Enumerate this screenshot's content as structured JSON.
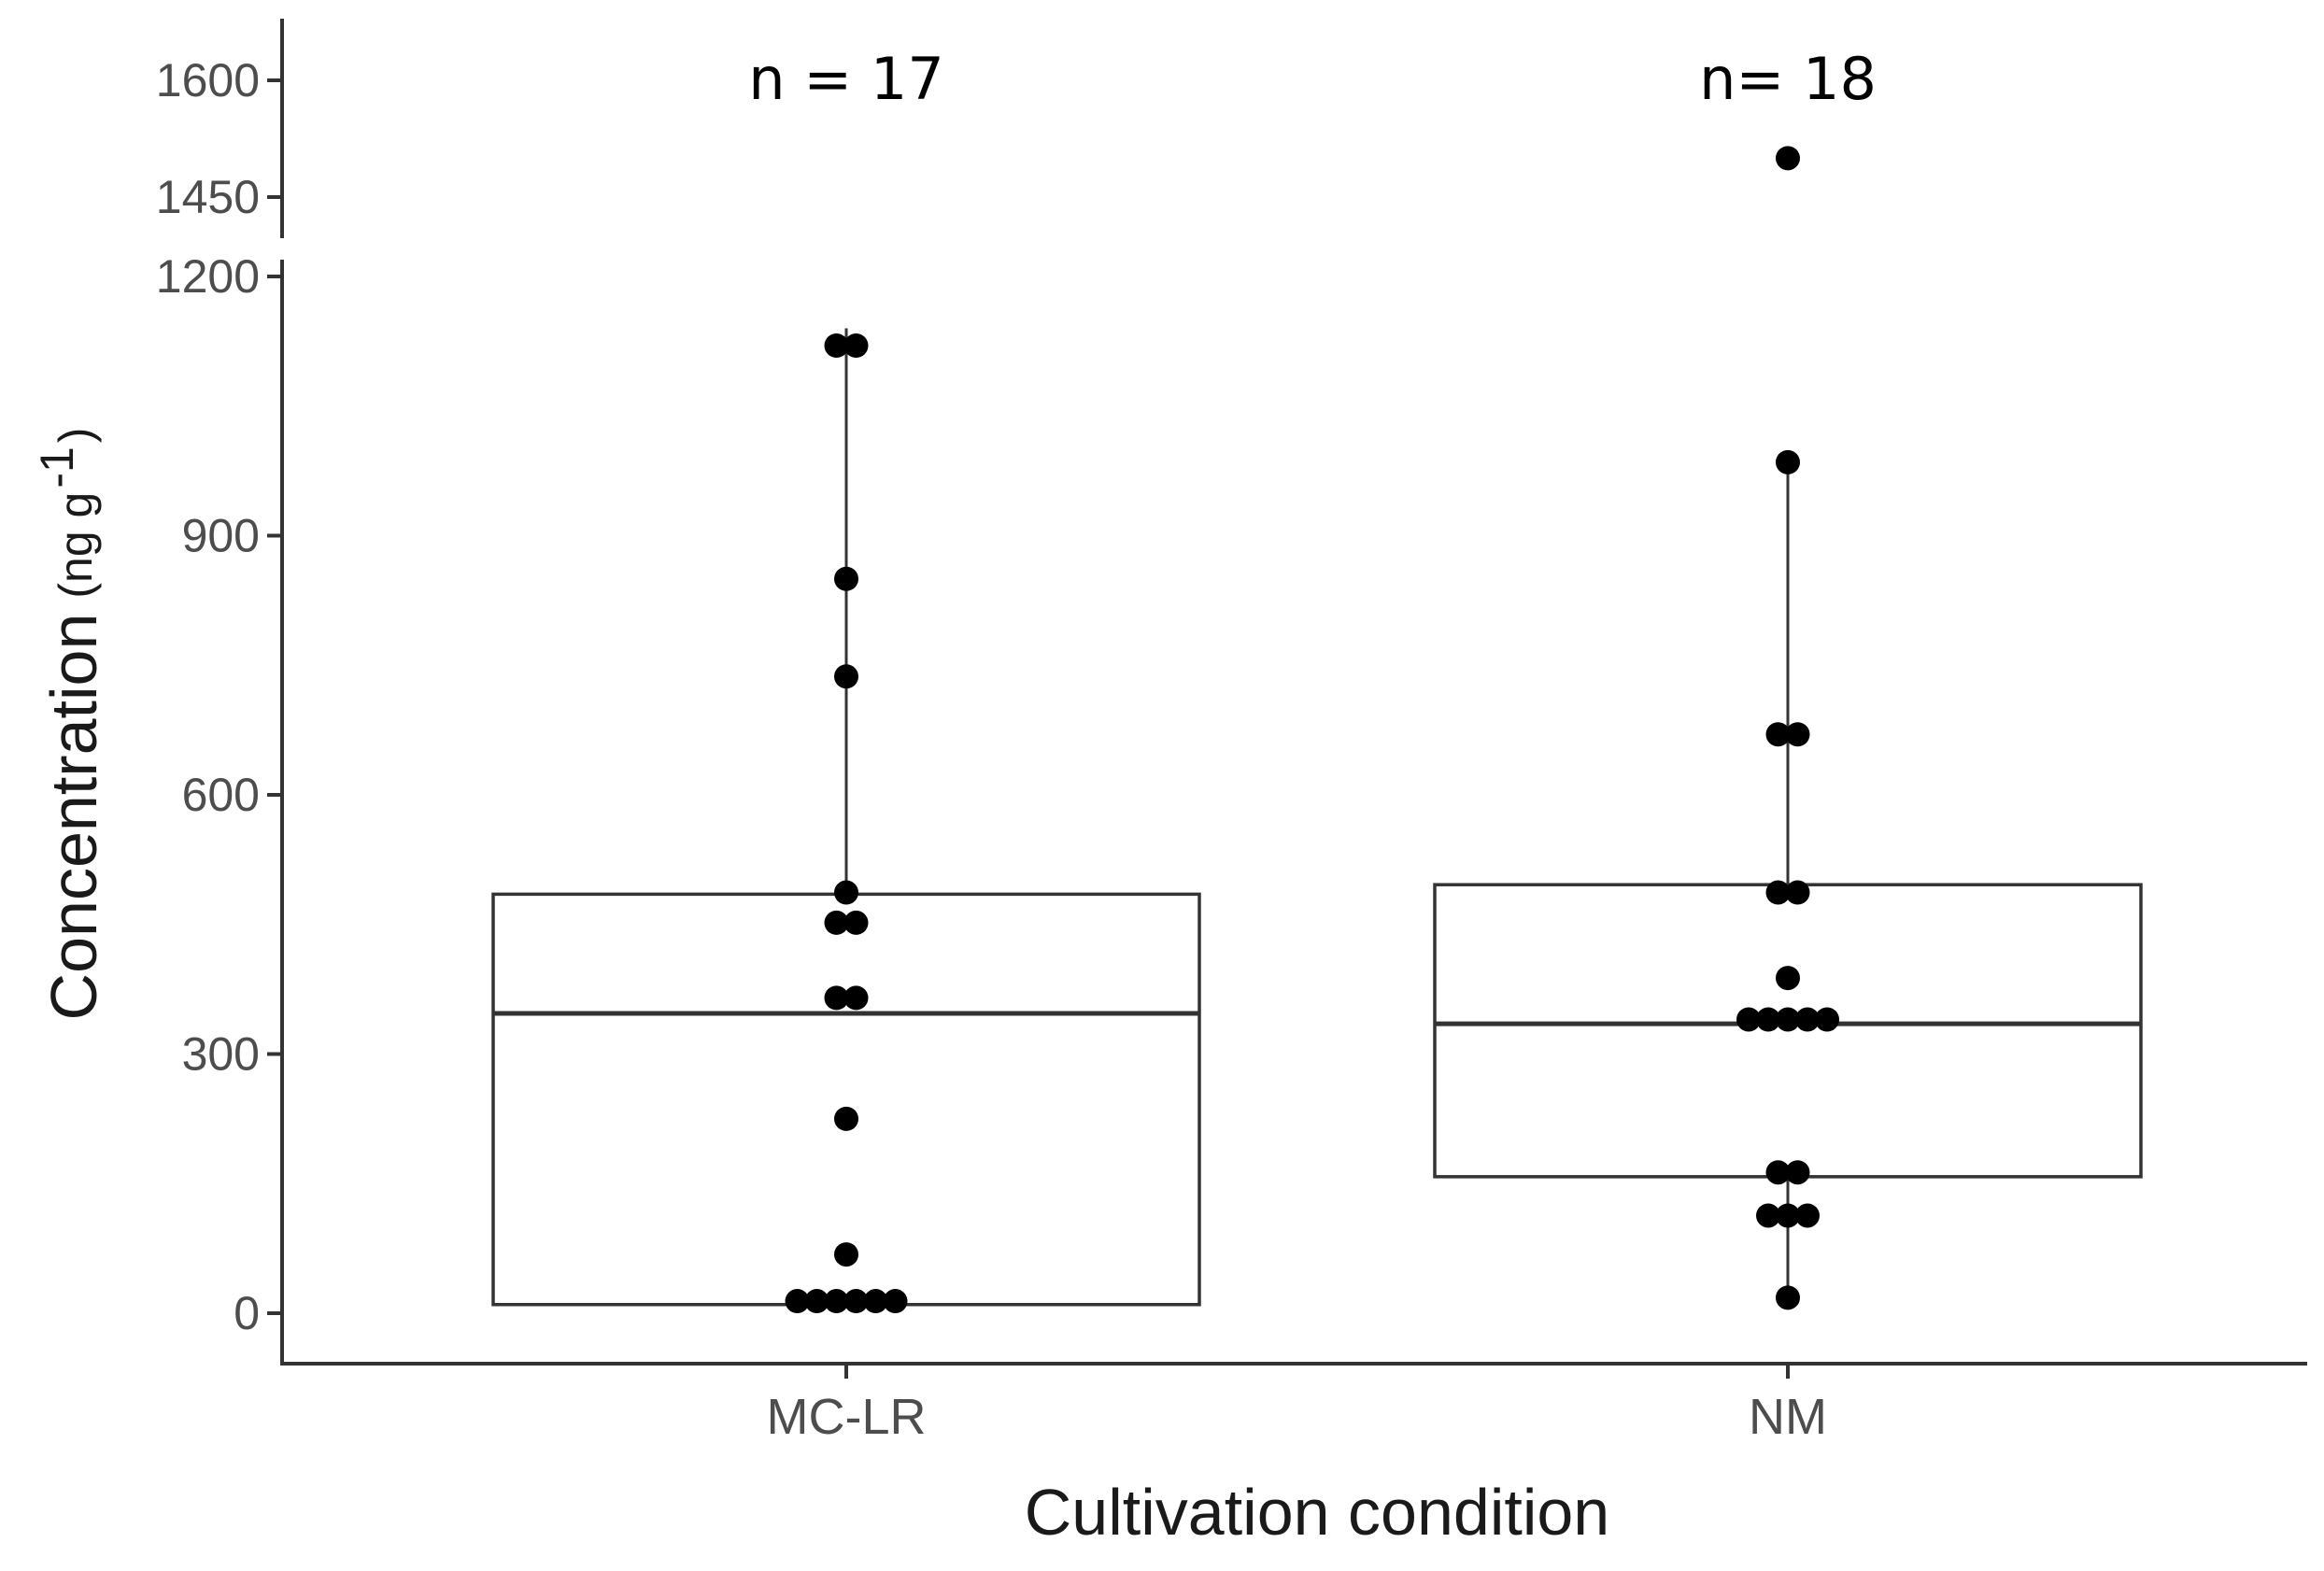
{
  "chart_data": {
    "type": "box",
    "xlabel": "Cultivation condition",
    "ylabel": "Concentration",
    "ylabel_unit": {
      "prefix": "(ng g",
      "sup": "-1",
      "suffix": ")"
    },
    "categories": [
      "MC-LR",
      "NM"
    ],
    "y_axis_break": {
      "lower_range": [
        -60,
        1210
      ],
      "upper_range": [
        1390,
        1680
      ]
    },
    "y_ticks_lower": [
      0,
      300,
      600,
      900,
      1200
    ],
    "y_ticks_upper": [
      1450,
      1600
    ],
    "boxes": [
      {
        "category": "MC-LR",
        "n_label": "n = 17",
        "q1": 10,
        "median": 347,
        "q3": 485,
        "whisker_low": 10,
        "whisker_high": 1140,
        "points": [
          1120,
          1120,
          850,
          737,
          487,
          452,
          452,
          365,
          365,
          225,
          68,
          14,
          14,
          14,
          14,
          14,
          14
        ]
      },
      {
        "category": "NM",
        "n_label": "n= 18",
        "q1": 158,
        "median": 335,
        "q3": 496,
        "whisker_low": 18,
        "whisker_high": 985,
        "points": [
          1500,
          985,
          670,
          670,
          487,
          487,
          388,
          340,
          340,
          340,
          340,
          340,
          163,
          163,
          113,
          113,
          113,
          18
        ]
      }
    ]
  }
}
